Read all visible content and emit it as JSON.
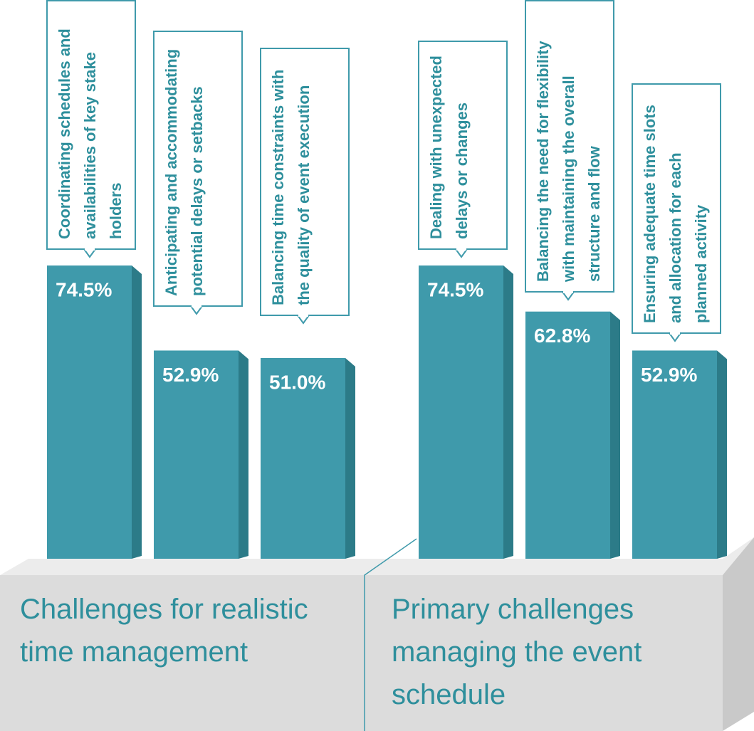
{
  "chart_data": [
    {
      "type": "bar",
      "title": "Challenges for realistic time management",
      "categories": [
        "Coordinating schedules and availabilities of key stake holders",
        "Anticipating and accommodating potential delays or setbacks",
        "Balancing time constraints with the quality of event execution"
      ],
      "values": [
        74.5,
        52.9,
        51.0
      ],
      "value_labels": [
        "74.5%",
        "52.9%",
        "51.0%"
      ],
      "color": "#3f9aab"
    },
    {
      "type": "bar",
      "title": "Primary challenges managing the event schedule",
      "categories": [
        "Dealing with unexpected delays or changes",
        "Balancing the need for flexibility with maintaining the overall structure and flow",
        "Ensuring adequate time slots and allocation for each planned activity"
      ],
      "values": [
        74.5,
        62.8,
        52.9
      ],
      "value_labels": [
        "74.5%",
        "62.8%",
        "52.9%"
      ],
      "color": "#3f9aab"
    }
  ]
}
